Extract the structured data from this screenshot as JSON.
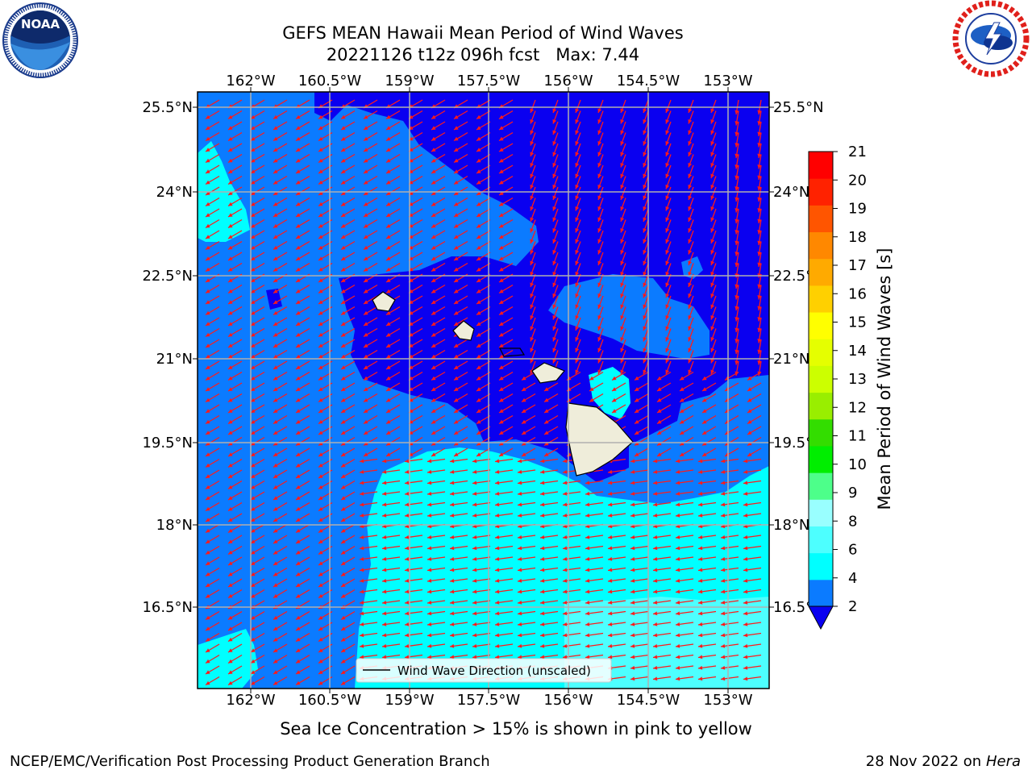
{
  "title": {
    "line1": "GEFS MEAN Hawaii Mean Period of Wind Waves",
    "line2": "20221126 t12z 096h fcst   Max: 7.44"
  },
  "logos": {
    "left": "NOAA",
    "left_ring_text": "NATIONAL OCEANIC AND ATMOSPHERIC ADMINISTRATION · U.S. DEPARTMENT OF COMMERCE",
    "right_ring_text": "NATIONAL WEATHER SERVICE"
  },
  "map": {
    "lon_labels": [
      "162°W",
      "160.5°W",
      "159°W",
      "157.5°W",
      "156°W",
      "154.5°W",
      "153°W"
    ],
    "lat_labels": [
      "25.5°N",
      "24°N",
      "22.5°N",
      "21°N",
      "19.5°N",
      "18°N",
      "16.5°N"
    ],
    "legend_label": "Wind Wave Direction (unscaled)",
    "colors": {
      "deep_blue": "#0a00f0",
      "mid_blue": "#0b7bff",
      "cyan": "#00ffff",
      "light_cyan": "#4dffff",
      "pale_cyan": "#99ffff",
      "land": "#efedda",
      "arrow": "#ff1a1a",
      "grid": "#b0b0b0"
    }
  },
  "colorbar": {
    "label": "Mean Period of Wind Waves [s]",
    "ticks": [
      "2",
      "4",
      "6",
      "8",
      "9",
      "10",
      "11",
      "12",
      "13",
      "14",
      "15",
      "16",
      "17",
      "18",
      "19",
      "20",
      "21"
    ],
    "colors": [
      "#0b7bff",
      "#00ffff",
      "#4dffff",
      "#99ffff",
      "#4dff8a",
      "#00ee00",
      "#33dd00",
      "#99ee00",
      "#ccff00",
      "#e5ff00",
      "#ffff00",
      "#ffd000",
      "#ffaa00",
      "#ff8800",
      "#ff5500",
      "#ff2200",
      "#ff0000"
    ],
    "under_color": "#0a00f0"
  },
  "footer": {
    "sea_ice_note": "Sea Ice Concentration > 15% is shown in pink to yellow",
    "branch": "NCEP/EMC/Verification Post Processing Product Generation Branch",
    "date": "28 Nov 2022 on",
    "machine": "Hera"
  }
}
